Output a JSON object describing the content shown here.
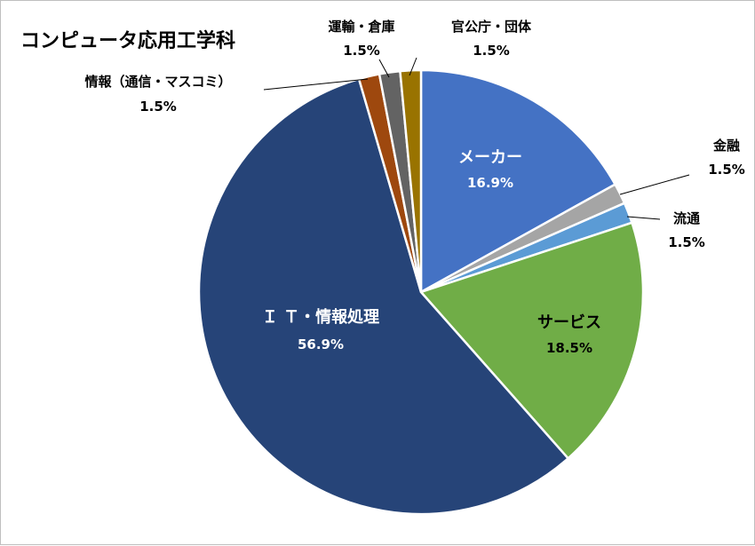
{
  "chart_data": {
    "type": "pie",
    "title": "コンピュータ応用工学科",
    "slices": [
      {
        "name": "メーカー",
        "value": 16.9,
        "label": "16.9%",
        "color": "#4472C4"
      },
      {
        "name": "金融",
        "value": 1.5,
        "label": "1.5%",
        "color": "#A5A5A5"
      },
      {
        "name": "流通",
        "value": 1.5,
        "label": "1.5%",
        "color": "#5B9BD5"
      },
      {
        "name": "サービス",
        "value": 18.5,
        "label": "18.5%",
        "color": "#70AD47"
      },
      {
        "name": "Ｉ Ｔ・情報処理",
        "value": 56.9,
        "label": "56.9%",
        "color": "#264478"
      },
      {
        "name": "情報（通信・マスコミ）",
        "value": 1.5,
        "label": "1.5%",
        "color": "#9E480E"
      },
      {
        "name": "運輸・倉庫",
        "value": 1.5,
        "label": "1.5%",
        "color": "#636363"
      },
      {
        "name": "官公庁・団体",
        "value": 1.5,
        "label": "1.5%",
        "color": "#997300"
      }
    ]
  }
}
